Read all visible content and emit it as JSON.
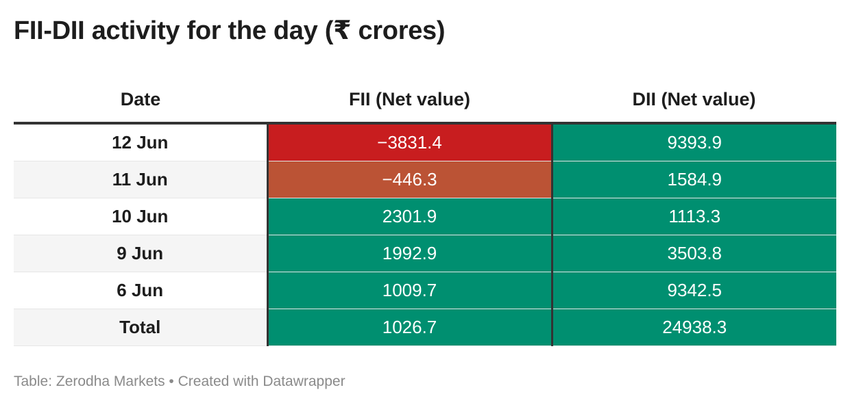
{
  "title": "FII-DII activity for the day (₹ crores)",
  "footer": "Table: Zerodha Markets • Created with Datawrapper",
  "colors": {
    "negative_large": "#c81d1f",
    "negative_small": "#bb5335",
    "positive": "#008f70"
  },
  "chart_data": {
    "type": "table",
    "title": "FII-DII activity for the day (₹ crores)",
    "columns": [
      "Date",
      "FII (Net value)",
      "DII (Net value)"
    ],
    "rows": [
      {
        "date": "12 Jun",
        "fii": "−3831.4",
        "dii": "9393.9",
        "fii_value": -3831.4,
        "dii_value": 9393.9,
        "fii_color": "#c81d1f",
        "dii_color": "#008f70"
      },
      {
        "date": "11 Jun",
        "fii": "−446.3",
        "dii": "1584.9",
        "fii_value": -446.3,
        "dii_value": 1584.9,
        "fii_color": "#bb5335",
        "dii_color": "#008f70"
      },
      {
        "date": "10 Jun",
        "fii": "2301.9",
        "dii": "1113.3",
        "fii_value": 2301.9,
        "dii_value": 1113.3,
        "fii_color": "#008f70",
        "dii_color": "#008f70"
      },
      {
        "date": "9 Jun",
        "fii": "1992.9",
        "dii": "3503.8",
        "fii_value": 1992.9,
        "dii_value": 3503.8,
        "fii_color": "#008f70",
        "dii_color": "#008f70"
      },
      {
        "date": "6 Jun",
        "fii": "1009.7",
        "dii": "9342.5",
        "fii_value": 1009.7,
        "dii_value": 9342.5,
        "fii_color": "#008f70",
        "dii_color": "#008f70"
      },
      {
        "date": "Total",
        "fii": "1026.7",
        "dii": "24938.3",
        "fii_value": 1026.7,
        "dii_value": 24938.3,
        "fii_color": "#008f70",
        "dii_color": "#008f70"
      }
    ]
  }
}
